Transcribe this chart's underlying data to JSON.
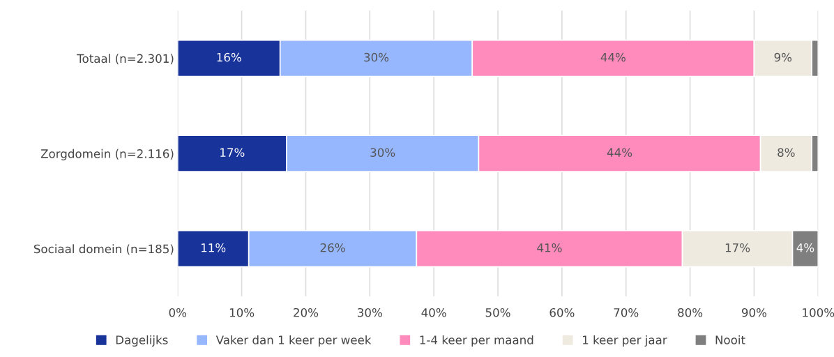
{
  "chart_data": {
    "type": "bar",
    "orientation": "horizontal",
    "stacked": true,
    "categories": [
      "Totaal (n=2.301)",
      "Zorgdomein (n=2.116)",
      "Sociaal domein (n=185)"
    ],
    "series": [
      {
        "name": "Dagelijks",
        "color": "#18339a",
        "values": [
          16,
          17,
          11.1
        ],
        "value_labels": [
          "16%",
          "17%",
          "11%"
        ]
      },
      {
        "name": "Vaker dan 1 keer per week",
        "color": "#96b7fe",
        "values": [
          30,
          30,
          26.2
        ],
        "value_labels": [
          "30%",
          "30%",
          "26%"
        ]
      },
      {
        "name": "1-4 keer per maand",
        "color": "#ff8abc",
        "values": [
          44,
          44,
          41.5
        ],
        "value_labels": [
          "44%",
          "44%",
          "41%"
        ]
      },
      {
        "name": "1 keer per jaar",
        "color": "#eeeae0",
        "values": [
          9,
          8,
          17.2
        ],
        "value_labels": [
          "9%",
          "8%",
          "17%"
        ]
      },
      {
        "name": "Nooit",
        "color": "#7f7f7f",
        "values": [
          1,
          1,
          4
        ],
        "value_labels": [
          null,
          null,
          "4%"
        ]
      }
    ],
    "xlim": [
      0,
      100
    ],
    "xticks": [
      {
        "value": 0,
        "label": "0%"
      },
      {
        "value": 10,
        "label": "10%"
      },
      {
        "value": 20,
        "label": "20%"
      },
      {
        "value": 30,
        "label": "30%"
      },
      {
        "value": 40,
        "label": "40%"
      },
      {
        "value": 50,
        "label": "50%"
      },
      {
        "value": 60,
        "label": "60%"
      },
      {
        "value": 70,
        "label": "70%"
      },
      {
        "value": 80,
        "label": "80%"
      },
      {
        "value": 90,
        "label": "90%"
      },
      {
        "value": 100,
        "label": "100%"
      }
    ],
    "grid": "x",
    "legend": "bottom"
  }
}
